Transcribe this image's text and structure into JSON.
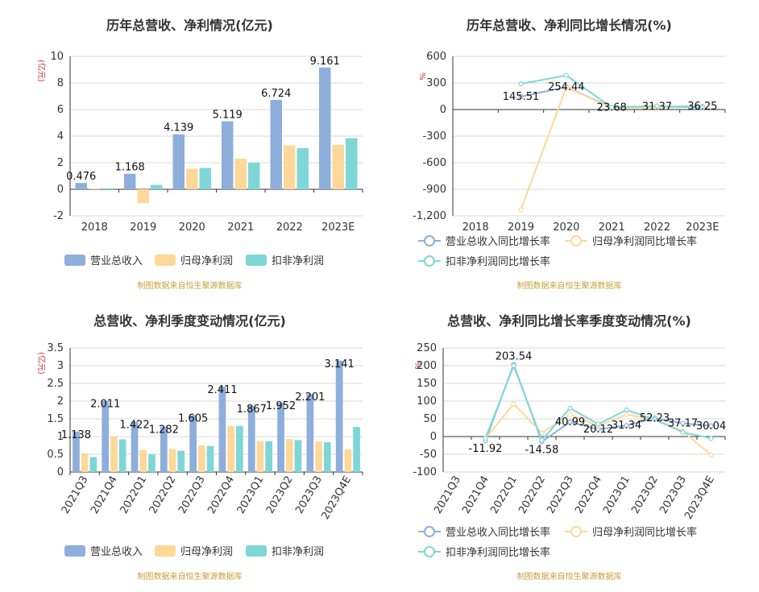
{
  "source_text": "制图数据来自恒生聚源数据库",
  "chart_data": [
    {
      "id": "p1",
      "type": "bar",
      "title": "历年总营收、净利情况(亿元)",
      "unit": "(亿元)",
      "categories": [
        "2018",
        "2019",
        "2020",
        "2021",
        "2022",
        "2023E"
      ],
      "ylim": [
        -2,
        10
      ],
      "yticks": [
        -2,
        0,
        2,
        4,
        6,
        8,
        10
      ],
      "series": [
        {
          "name": "营业总收入",
          "color": "#8eaedc",
          "values": [
            0.476,
            1.168,
            4.139,
            5.119,
            6.724,
            9.161
          ]
        },
        {
          "name": "归母净利润",
          "color": "#fdd899",
          "values": [
            0.05,
            -1.05,
            1.55,
            2.3,
            3.3,
            3.35
          ]
        },
        {
          "name": "扣非净利润",
          "color": "#7fd6d6",
          "values": [
            0.06,
            0.33,
            1.6,
            2.0,
            3.1,
            3.85
          ]
        }
      ],
      "data_labels": [
        "0.476",
        "1.168",
        "4.139",
        "5.119",
        "6.724",
        "9.161"
      ]
    },
    {
      "id": "p2",
      "type": "line",
      "title": "历年总营收、净利同比增长情况(%)",
      "unit": "%",
      "categories": [
        "2018",
        "2019",
        "2020",
        "2021",
        "2022",
        "2023E"
      ],
      "ylim": [
        -1200,
        600
      ],
      "yticks": [
        -1200,
        -900,
        -600,
        -300,
        0,
        300,
        600
      ],
      "ytick_labels": [
        "-1,200",
        "-900",
        "-600",
        "-300",
        "0",
        "300",
        "600"
      ],
      "series": [
        {
          "name": "营业总收入同比增长率",
          "color": "#8eaedc",
          "values": [
            null,
            145.51,
            254.44,
            23.68,
            31.37,
            36.25
          ]
        },
        {
          "name": "归母净利润同比增长率",
          "color": "#fdd899",
          "values": [
            null,
            -1130,
            250,
            20,
            22,
            30
          ]
        },
        {
          "name": "扣非净利润同比增长率",
          "color": "#7fd6d6",
          "values": [
            null,
            290,
            385,
            25,
            40,
            20
          ]
        }
      ],
      "data_labels": [
        "",
        "145.51",
        "254.44",
        "23.68",
        "31.37",
        "36.25"
      ]
    },
    {
      "id": "p3",
      "type": "bar",
      "title": "总营收、净利季度变动情况(亿元)",
      "unit": "(亿元)",
      "categories": [
        "2021Q3",
        "2021Q4",
        "2022Q1",
        "2022Q2",
        "2022Q3",
        "2022Q4",
        "2023Q1",
        "2023Q2",
        "2023Q3",
        "2023Q4E"
      ],
      "ylim": [
        0,
        3.5
      ],
      "yticks": [
        0,
        0.5,
        1,
        1.5,
        2,
        2.5,
        3,
        3.5
      ],
      "ytick_labels": [
        "0",
        "0.5",
        "1",
        "1.5",
        "2",
        "2.5",
        "3",
        "3.5"
      ],
      "series": [
        {
          "name": "营业总收入",
          "color": "#8eaedc",
          "values": [
            1.138,
            2.011,
            1.422,
            1.282,
            1.605,
            2.411,
            1.867,
            1.952,
            2.201,
            3.141
          ]
        },
        {
          "name": "归母净利润",
          "color": "#fdd899",
          "values": [
            0.52,
            1.0,
            0.62,
            0.65,
            0.75,
            1.3,
            0.87,
            0.93,
            0.86,
            0.64
          ]
        },
        {
          "name": "扣非净利润",
          "color": "#7fd6d6",
          "values": [
            0.42,
            0.92,
            0.5,
            0.6,
            0.73,
            1.3,
            0.87,
            0.9,
            0.84,
            1.27
          ]
        }
      ],
      "data_labels": [
        "1.138",
        "2.011",
        "1.422",
        "1.282",
        "1.605",
        "2.411",
        "1.867",
        "1.952",
        "2.201",
        "3.141"
      ]
    },
    {
      "id": "p4",
      "type": "line",
      "title": "总营收、净利同比增长率季度变动情况(%)",
      "unit": "%",
      "categories": [
        "2021Q3",
        "2021Q4",
        "2022Q1",
        "2022Q2",
        "2022Q3",
        "2022Q4",
        "2023Q1",
        "2023Q2",
        "2023Q3",
        "2023Q4E"
      ],
      "ylim": [
        -100,
        250
      ],
      "yticks": [
        -100,
        -50,
        0,
        50,
        100,
        150,
        200,
        250
      ],
      "ytick_labels": [
        "-100",
        "-50",
        "0",
        "50",
        "100",
        "150",
        "200",
        "250"
      ],
      "series": [
        {
          "name": "营业总收入同比增长率",
          "color": "#8eaedc",
          "values": [
            null,
            -11.92,
            203.54,
            -14.58,
            40.99,
            20.12,
            31.34,
            52.23,
            37.17,
            30.04
          ]
        },
        {
          "name": "归母净利润同比增长率",
          "color": "#fdd899",
          "values": [
            null,
            -5,
            92,
            10,
            62,
            30,
            62,
            48,
            15,
            -52
          ]
        },
        {
          "name": "扣非净利润同比增长率",
          "color": "#7fd6d6",
          "values": [
            null,
            -5,
            200,
            -10,
            80,
            35,
            75,
            48,
            12,
            -5
          ]
        }
      ],
      "data_labels": [
        "",
        "-11.92",
        "203.54",
        "-14.58",
        "40.99",
        "20.12",
        "31.34",
        "52.23",
        "37.17",
        "30.04"
      ]
    }
  ]
}
